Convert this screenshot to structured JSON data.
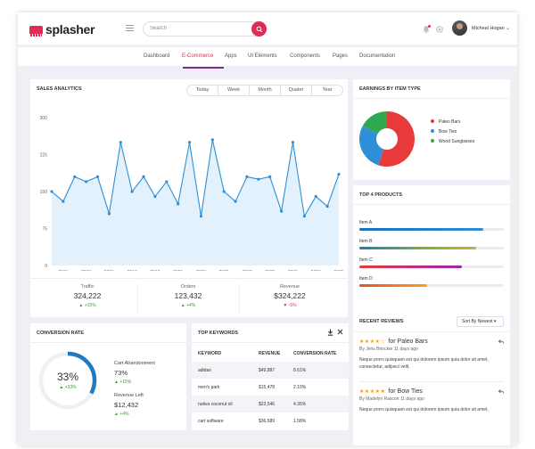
{
  "app": {
    "logo_text": "splasher",
    "search_placeholder": "Search",
    "user_name": "Micheal Hogan ⌄"
  },
  "subnav": [
    "Dashboard",
    "E-Commerce",
    "Apps",
    "UI Elements",
    "Components",
    "Pages",
    "Documentation"
  ],
  "sales": {
    "title": "SALES ANALYTICS",
    "ranges": [
      "Today",
      "Week",
      "Month",
      "Quater",
      "Year"
    ],
    "stats": [
      {
        "label": "Traffic",
        "value": "324,222",
        "change": "+15%",
        "dir": "up"
      },
      {
        "label": "Orders",
        "value": "123,432",
        "change": "+4%",
        "dir": "up"
      },
      {
        "label": "Revenue",
        "value": "$324,222",
        "change": "-5%",
        "dir": "down"
      }
    ]
  },
  "chart_data": [
    {
      "type": "area",
      "title": "",
      "xlabel": "",
      "ylabel": "",
      "yticks": [
        "300",
        "225",
        "150",
        "75",
        "0"
      ],
      "xticks": [
        "2011",
        "2013",
        "2015",
        "2017",
        "2019",
        "2021",
        "2023",
        "2025",
        "2027",
        "2029",
        "2031",
        "2033",
        "2035"
      ],
      "x": [
        2010,
        2011,
        2012,
        2013,
        2014,
        2015,
        2016,
        2017,
        2018,
        2019,
        2020,
        2021,
        2022,
        2023,
        2024,
        2025,
        2026,
        2027,
        2028,
        2029,
        2030,
        2031,
        2032,
        2033,
        2034,
        2035
      ],
      "values": [
        150,
        130,
        180,
        170,
        180,
        105,
        250,
        150,
        180,
        140,
        170,
        125,
        250,
        100,
        255,
        150,
        130,
        180,
        175,
        180,
        110,
        250,
        100,
        140,
        120,
        185
      ],
      "ylim": [
        0,
        300
      ],
      "grid": false,
      "color": "#2e8fd6",
      "fill": "#e3f1fc"
    },
    {
      "type": "pie",
      "title": "EARNINGS BY ITEM TYPE",
      "categories": [
        "Paleo Bars",
        "Bow Ties",
        "Wood Sunglasses"
      ],
      "values": [
        55,
        28,
        17
      ],
      "colors": [
        "#e83a3a",
        "#2e8fd6",
        "#2fa84f"
      ],
      "legend": "right"
    },
    {
      "type": "bar",
      "title": "TOP 4 PRODUCTS",
      "categories": [
        "Item A",
        "Item B",
        "Item C",
        "Item D"
      ],
      "values": [
        86,
        81,
        71,
        47
      ],
      "ylim": [
        0,
        100
      ],
      "colors": [
        "#1f7bc1",
        "#6ab23e",
        "#9c27b0",
        "#ff7a1a"
      ]
    }
  ],
  "conversion": {
    "title": "CONVERSION RATE",
    "percent": "33%",
    "change": "+33%",
    "progress": 0.33,
    "abandon_label": "Cart Abandonment",
    "abandon_value": "73%",
    "abandon_change": "+15%",
    "revenue_label": "Revenue Left",
    "revenue_value": "$12,432",
    "revenue_change": "+4%"
  },
  "keywords": {
    "title": "TOP KEYWORDS",
    "headers": [
      "KEYWORD",
      "REVENUE",
      "CONVERSION RATE"
    ],
    "rows": [
      [
        "adidas",
        "$49,887",
        "8.61%"
      ],
      [
        "men's park",
        "$15,478",
        "2.10%"
      ],
      [
        "nutiva coconut oil",
        "$23,546",
        "4.35%"
      ],
      [
        "cart software",
        "$36,589",
        "1.58%"
      ]
    ]
  },
  "reviews": {
    "title": "RECENT REVIEWS",
    "sort_label": "Sort By Newest ▾",
    "items": [
      {
        "stars": "★★★★☆",
        "title": "for Paleo Bars",
        "by": "By Jens Brincker 11 days ago",
        "text": "Neque porro quisquam est qui dolorem ipsum quia dolor sit amet, consectetur, adipisci velit."
      },
      {
        "stars": "★★★★★",
        "title": "for Bow Ties",
        "by": "By Madelyn Rascon 11 days ago",
        "text": "Neque porro quisquam est qui dolorem ipsum quia dolor sit amet,"
      }
    ]
  }
}
